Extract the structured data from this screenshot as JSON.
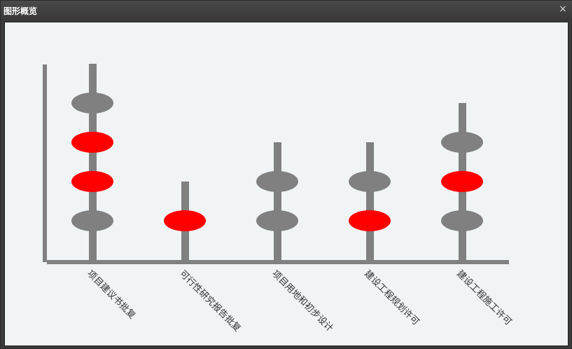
{
  "window": {
    "title": "图形概览",
    "close_label": "×"
  },
  "colors": {
    "bead_done": "#808080",
    "bead_active": "#ff0000",
    "axis": "#808080",
    "background": "#f0f4f5"
  },
  "chart_data": {
    "type": "abacus",
    "categories": [
      "项目建议书批复",
      "可行性研究报告批复",
      "项目用地和初步设计",
      "建设工程规划许可",
      "建设工程施工许可"
    ],
    "columns": [
      {
        "label": "项目建议书批复",
        "beads": [
          "gray",
          "red",
          "red",
          "gray"
        ]
      },
      {
        "label": "可行性研究报告批复",
        "beads": [
          "red"
        ]
      },
      {
        "label": "项目用地和初步设计",
        "beads": [
          "gray",
          "gray"
        ]
      },
      {
        "label": "建设工程规划许可",
        "beads": [
          "gray",
          "red"
        ]
      },
      {
        "label": "建设工程施工许可",
        "beads": [
          "gray",
          "red",
          "gray"
        ]
      }
    ],
    "legend": "none",
    "grid": false
  }
}
